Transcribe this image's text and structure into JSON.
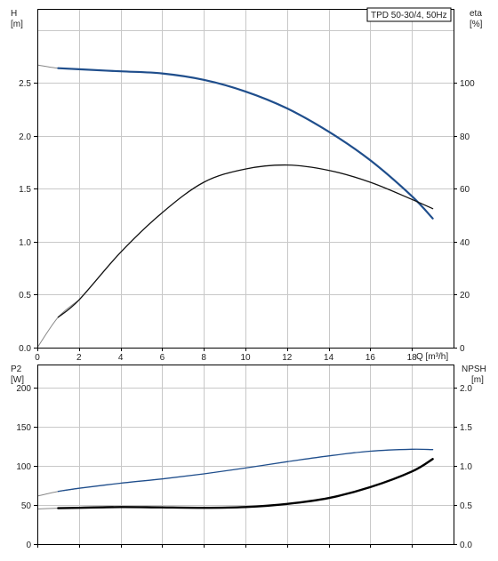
{
  "title_box": "TPD 50-30/4, 50Hz",
  "chart_data": [
    {
      "type": "line",
      "xlabel": "Q [m³/h]",
      "ylabel": [
        "H",
        "[m]"
      ],
      "y2label": [
        "eta",
        "[%]"
      ],
      "xlim": [
        0,
        20
      ],
      "ylim": [
        0,
        3.2
      ],
      "y2lim": [
        0,
        128
      ],
      "xticks": [
        "0",
        "2",
        "4",
        "6",
        "8",
        "10",
        "12",
        "14",
        "16",
        "18"
      ],
      "yticks": [
        "0.0",
        "0.5",
        "1.0",
        "1.5",
        "2.0",
        "2.5"
      ],
      "y2ticks": [
        "0",
        "20",
        "40",
        "60",
        "80",
        "100"
      ],
      "grid": true,
      "series": [
        {
          "name": "H",
          "axis": "left",
          "color": "#1f4e8c",
          "x": [
            0,
            1,
            2,
            4,
            6,
            8,
            10,
            12,
            14,
            16,
            18,
            19
          ],
          "y": [
            2.67,
            2.64,
            2.63,
            2.61,
            2.59,
            2.53,
            2.42,
            2.26,
            2.04,
            1.77,
            1.43,
            1.22
          ]
        },
        {
          "name": "eta",
          "axis": "right",
          "color": "#111111",
          "x": [
            0,
            1,
            2,
            4,
            6,
            8,
            10,
            12,
            14,
            16,
            18,
            19
          ],
          "y": [
            0,
            11.5,
            18,
            36,
            51,
            62.5,
            67.5,
            69,
            67,
            62.5,
            56,
            52.5
          ]
        }
      ]
    },
    {
      "type": "line",
      "xlabel": "",
      "ylabel": [
        "P2",
        "[W]"
      ],
      "y2label": [
        "NPSH",
        "[m]"
      ],
      "xlim": [
        0,
        20
      ],
      "ylim": [
        0,
        230
      ],
      "y2lim": [
        0,
        2.3
      ],
      "yticks": [
        "0",
        "50",
        "100",
        "150",
        "200"
      ],
      "y2ticks": [
        "0.0",
        "0.5",
        "1.0",
        "1.5",
        "2.0"
      ],
      "grid": true,
      "series": [
        {
          "name": "P2",
          "axis": "left",
          "color": "#1f4e8c",
          "x": [
            0,
            1,
            2,
            4,
            6,
            8,
            10,
            12,
            14,
            16,
            18,
            19
          ],
          "y": [
            61.5,
            67.5,
            71.5,
            78,
            83.5,
            90,
            97.5,
            105.5,
            113,
            119,
            121.5,
            121
          ]
        },
        {
          "name": "NPSH",
          "axis": "right",
          "color": "#000000",
          "x": [
            0,
            1,
            2,
            4,
            6,
            8,
            10,
            12,
            14,
            16,
            18,
            19
          ],
          "y": [
            0.45,
            0.46,
            0.465,
            0.475,
            0.47,
            0.465,
            0.475,
            0.515,
            0.59,
            0.73,
            0.93,
            1.09
          ]
        }
      ]
    }
  ]
}
